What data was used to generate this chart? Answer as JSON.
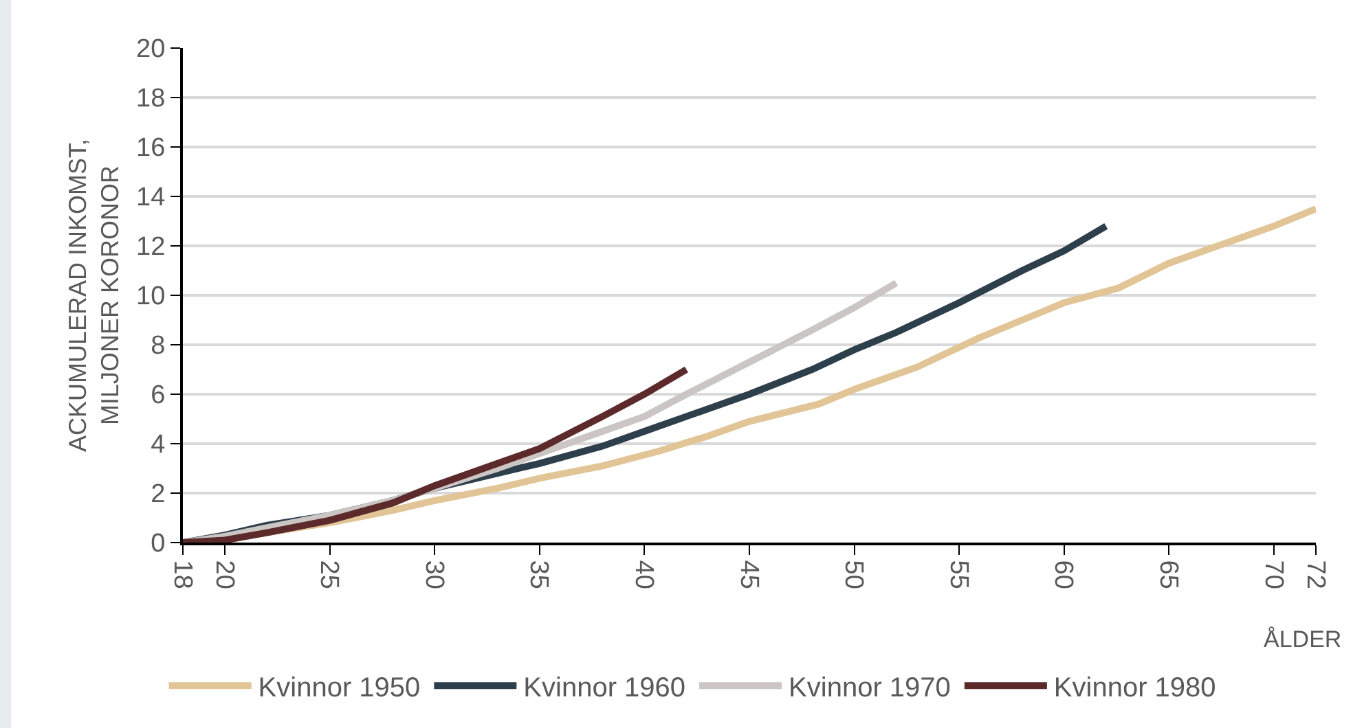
{
  "chart_data": {
    "type": "line",
    "ylabel": "ACKUMULERAD INKOMST,\nMILJONER KORONOR",
    "xlabel": "ÅLDER",
    "xlim": [
      18,
      72
    ],
    "xticks": [
      18,
      20,
      25,
      30,
      35,
      40,
      45,
      50,
      55,
      60,
      65,
      70,
      72
    ],
    "ylim": [
      0,
      20
    ],
    "yticks": [
      0,
      2,
      4,
      6,
      8,
      10,
      12,
      14,
      16,
      18,
      20
    ],
    "grid": "y",
    "legend": "bottom",
    "marker": "none",
    "line_style": "solid",
    "series": [
      {
        "name": "Kvinnor 1950",
        "color": "#e2c596",
        "x": [
          18,
          20,
          22,
          25,
          28,
          30,
          33,
          35,
          38,
          40.7,
          43,
          45,
          48.3,
          50,
          53,
          56,
          58,
          60,
          62.6,
          65,
          68,
          70,
          72
        ],
        "values": [
          0,
          0.1,
          0.4,
          0.8,
          1.3,
          1.7,
          2.2,
          2.6,
          3.1,
          3.7,
          4.3,
          4.9,
          5.6,
          6.2,
          7.1,
          8.3,
          9.0,
          9.7,
          10.3,
          11.3,
          12.2,
          12.8,
          13.5
        ]
      },
      {
        "name": "Kvinnor 1960",
        "color": "#2e3f4c",
        "x": [
          18,
          20,
          22,
          25,
          28,
          30,
          33,
          35,
          38,
          40,
          42,
          45,
          48,
          50,
          52,
          55,
          58,
          60,
          62
        ],
        "values": [
          0,
          0.3,
          0.7,
          1.1,
          1.7,
          2.2,
          2.8,
          3.2,
          3.9,
          4.5,
          5.1,
          6.0,
          7.0,
          7.8,
          8.5,
          9.7,
          11.0,
          11.8,
          12.8
        ]
      },
      {
        "name": "Kvinnor 1970",
        "color": "#cbc5c4",
        "x": [
          18,
          20,
          22,
          25,
          28,
          30,
          33,
          35,
          38,
          40,
          42,
          45,
          48,
          50,
          52
        ],
        "values": [
          0,
          0.25,
          0.6,
          1.1,
          1.7,
          2.2,
          3.0,
          3.6,
          4.5,
          5.1,
          6.0,
          7.3,
          8.6,
          9.5,
          10.5
        ]
      },
      {
        "name": "Kvinnor 1980",
        "color": "#5c2a2b",
        "x": [
          18,
          20,
          22,
          25,
          28,
          30,
          33,
          35,
          38,
          40,
          42
        ],
        "values": [
          0,
          0.1,
          0.4,
          0.9,
          1.6,
          2.3,
          3.2,
          3.8,
          5.1,
          6.0,
          7.0
        ]
      }
    ]
  }
}
